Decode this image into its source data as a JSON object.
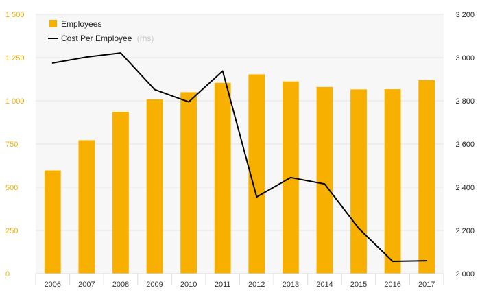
{
  "colors": {
    "bar": "#f7b000",
    "line": "#000000",
    "left_axis_text": "#f2b000",
    "right_axis_text": "#222222",
    "grid": "#e6e6e6",
    "plot_bg": "#f7f7f7"
  },
  "chart_data": {
    "type": "bar",
    "title": "",
    "categories": [
      "2006",
      "2007",
      "2008",
      "2009",
      "2010",
      "2011",
      "2012",
      "2013",
      "2014",
      "2015",
      "2016",
      "2017"
    ],
    "series": [
      {
        "name": "Employees",
        "type": "bar",
        "axis": "left",
        "values": [
          597,
          772,
          936,
          1009,
          1050,
          1104,
          1153,
          1112,
          1080,
          1066,
          1067,
          1120
        ]
      },
      {
        "name": "Cost Per Employee",
        "name_suffix": "(rhs)",
        "type": "line",
        "axis": "right",
        "values": [
          2975,
          3003,
          3022,
          2852,
          2795,
          2938,
          2355,
          2445,
          2415,
          2210,
          2057,
          2060
        ]
      }
    ],
    "left_axis": {
      "ylim": [
        0,
        1500
      ],
      "ticks": [
        0,
        250,
        500,
        750,
        1000,
        1250,
        1500
      ],
      "tick_labels": [
        "0",
        "250",
        "500",
        "750",
        "1 000",
        "1 250",
        "1 500"
      ]
    },
    "right_axis": {
      "ylim": [
        2000,
        3200
      ],
      "ticks": [
        2000,
        2200,
        2400,
        2600,
        2800,
        3000,
        3200
      ],
      "tick_labels": [
        "2 000",
        "2 200",
        "2 400",
        "2 600",
        "2 800",
        "3 000",
        "3 200"
      ]
    },
    "legend": {
      "placement": "top-left",
      "items": [
        {
          "label": "Employees",
          "suffix": ""
        },
        {
          "label": "Cost Per Employee",
          "suffix": "(rhs)"
        }
      ]
    },
    "grid": true
  }
}
